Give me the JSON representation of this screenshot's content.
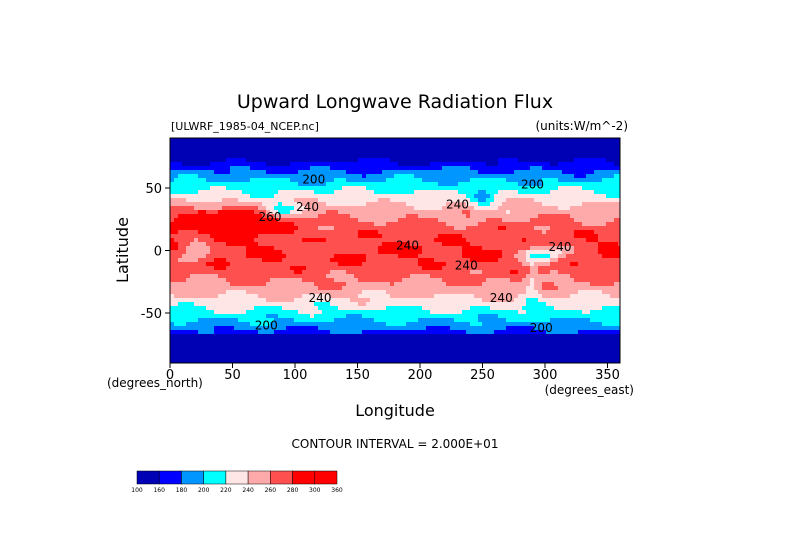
{
  "chart_data": {
    "type": "heatmap",
    "title": "Upward Longwave Radiation Flux",
    "file_label": "[ULWRF_1985-04_NCEP.nc]",
    "units_label": "(units:W/m^-2)",
    "xlabel": "Longitude",
    "ylabel": "Latitude",
    "x_unit_label": "(degrees_east)",
    "y_unit_label": "(degrees_north)",
    "xlim": [
      0,
      360
    ],
    "ylim": [
      -90,
      90
    ],
    "x_ticks": [
      0,
      50,
      100,
      150,
      200,
      250,
      300,
      350
    ],
    "y_ticks": [
      -50,
      0,
      50
    ],
    "contour_interval_text": "CONTOUR INTERVAL = 2.000E+01",
    "colorbar": {
      "levels": [
        100,
        160,
        180,
        200,
        220,
        240,
        260,
        280,
        300,
        360
      ],
      "level_labels": [
        "100",
        "160",
        "180",
        "200",
        "220",
        "240",
        "260",
        "280",
        "300",
        "360"
      ],
      "colors": [
        "#0000b4",
        "#0000ff",
        "#0096ff",
        "#00ffff",
        "#ffe6e6",
        "#ffaaaa",
        "#ff5050",
        "#ff0000",
        "#ff0000"
      ]
    },
    "contour_labels": [
      {
        "text": "200",
        "lon": 115,
        "lat": 57
      },
      {
        "text": "200",
        "lon": 290,
        "lat": 53
      },
      {
        "text": "240",
        "lon": 110,
        "lat": 35
      },
      {
        "text": "240",
        "lon": 230,
        "lat": 37
      },
      {
        "text": "260",
        "lon": 80,
        "lat": 27
      },
      {
        "text": "240",
        "lon": 190,
        "lat": 4
      },
      {
        "text": "240",
        "lon": 312,
        "lat": 3
      },
      {
        "text": "240",
        "lon": 237,
        "lat": -12
      },
      {
        "text": "240",
        "lon": 120,
        "lat": -38
      },
      {
        "text": "240",
        "lon": 265,
        "lat": -38
      },
      {
        "text": "200",
        "lon": 77,
        "lat": -60
      },
      {
        "text": "200",
        "lon": 297,
        "lat": -62
      }
    ]
  }
}
